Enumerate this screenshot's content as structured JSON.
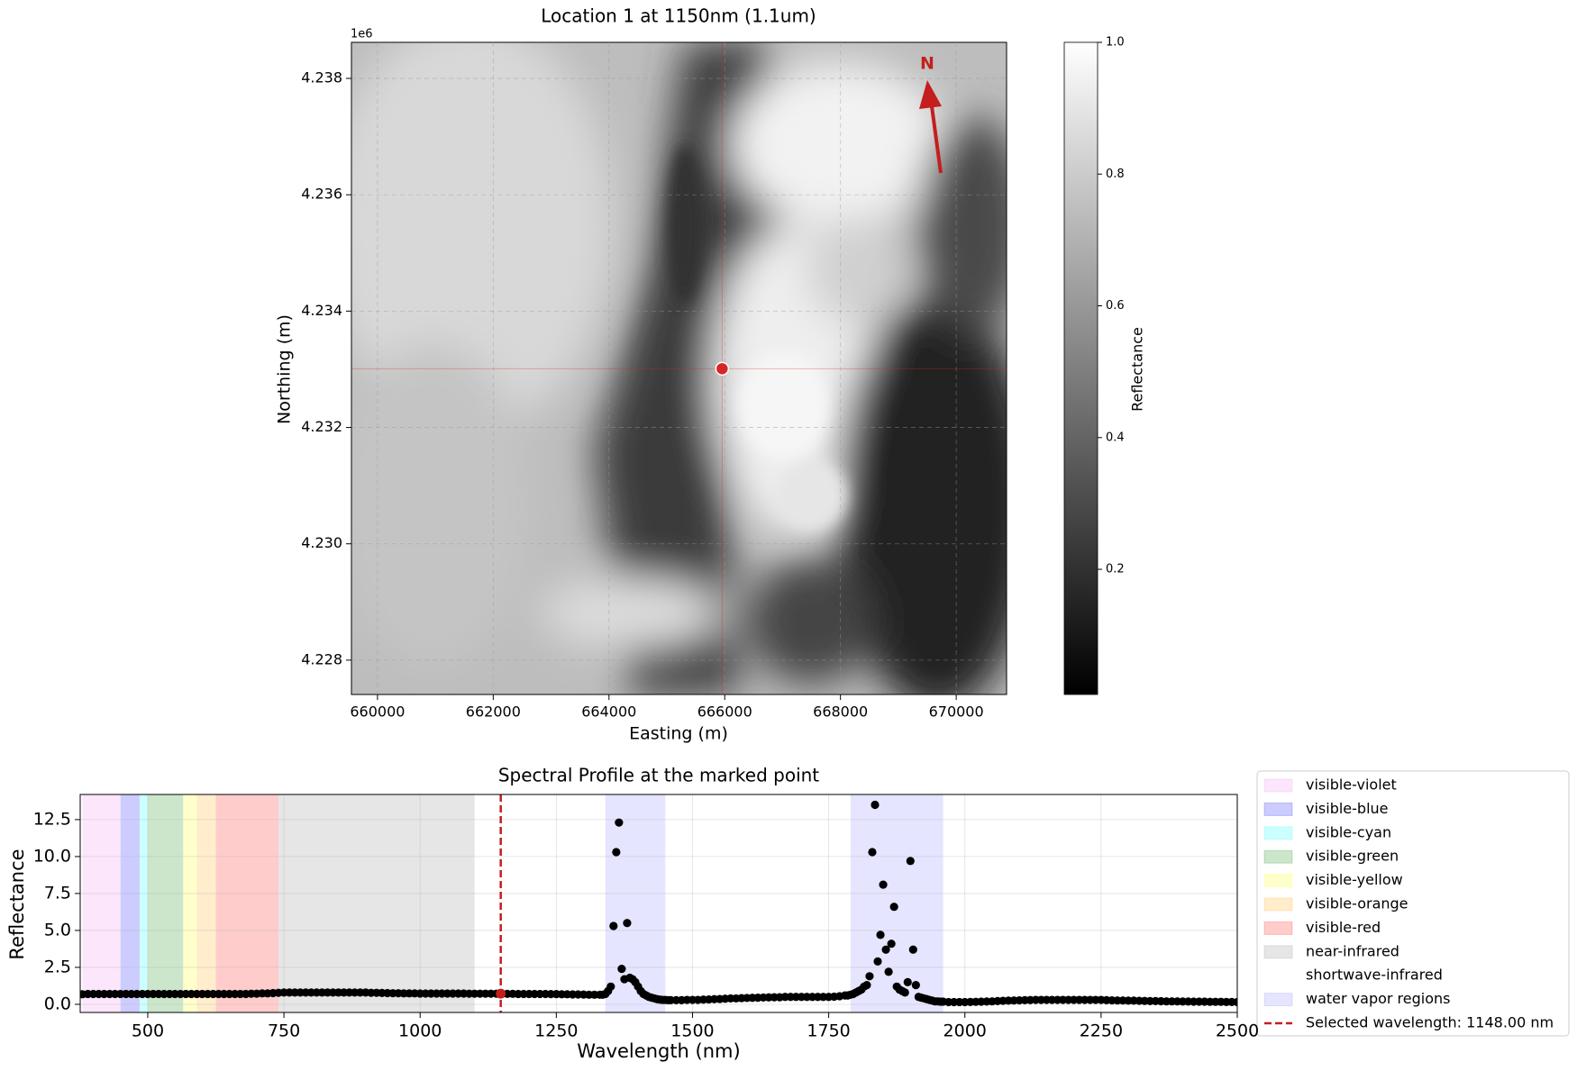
{
  "chart_data": [
    {
      "type": "image",
      "title": "Location 1 at 1150nm (1.1um)",
      "xlabel": "Easting (m)",
      "ylabel": "Northing (m)",
      "xlim": [
        659550,
        670870
      ],
      "ylim": [
        4227410,
        4238620
      ],
      "xticks": [
        660000,
        662000,
        664000,
        666000,
        668000,
        670000
      ],
      "yticks": [
        {
          "value": 4228000,
          "label": "4.228"
        },
        {
          "value": 4230000,
          "label": "4.230"
        },
        {
          "value": 4232000,
          "label": "4.232"
        },
        {
          "value": 4234000,
          "label": "4.234"
        },
        {
          "value": 4236000,
          "label": "4.236"
        },
        {
          "value": 4238000,
          "label": "4.238"
        }
      ],
      "offset_label": "1e6",
      "grid": true,
      "marker": {
        "x": 665955,
        "y": 4233010,
        "color": "#d62728"
      },
      "north_label": "N",
      "colorbar": {
        "label": "Reflectance",
        "clim": [
          0.01,
          1.0
        ],
        "ticks": [
          0.2,
          0.4,
          0.6,
          0.8,
          {
            "value": 1,
            "label": "1.0"
          }
        ]
      }
    },
    {
      "type": "scatter",
      "title": "Spectral Profile at the marked point",
      "xlabel": "Wavelength (nm)",
      "ylabel": "Reflectance",
      "xlim": [
        376,
        2500
      ],
      "ylim": [
        -0.55,
        14.2
      ],
      "xticks": [
        500,
        750,
        1000,
        1250,
        1500,
        1750,
        2000,
        2250,
        2500
      ],
      "yticks": [
        {
          "value": 0,
          "label": "0.0"
        },
        2.5,
        {
          "value": 5,
          "label": "5.0"
        },
        7.5,
        {
          "value": 10,
          "label": "10.0"
        },
        12.5
      ],
      "grid": true,
      "color": "#000000",
      "bands": [
        {
          "name": "visible-violet",
          "color": "#ee82ee",
          "alpha": 0.2,
          "ranges": [
            [
              380,
              450
            ]
          ]
        },
        {
          "name": "visible-blue",
          "color": "#0000ff",
          "alpha": 0.2,
          "ranges": [
            [
              450,
              485
            ]
          ]
        },
        {
          "name": "visible-cyan",
          "color": "#00ffff",
          "alpha": 0.2,
          "ranges": [
            [
              485,
              500
            ]
          ]
        },
        {
          "name": "visible-green",
          "color": "#008000",
          "alpha": 0.2,
          "ranges": [
            [
              500,
              565
            ]
          ]
        },
        {
          "name": "visible-yellow",
          "color": "#ffff00",
          "alpha": 0.2,
          "ranges": [
            [
              565,
              590
            ]
          ]
        },
        {
          "name": "visible-orange",
          "color": "#ffa500",
          "alpha": 0.2,
          "ranges": [
            [
              590,
              625
            ]
          ]
        },
        {
          "name": "visible-red",
          "color": "#ff0000",
          "alpha": 0.2,
          "ranges": [
            [
              625,
              740
            ]
          ]
        },
        {
          "name": "near-infrared",
          "color": "#808080",
          "alpha": 0.2,
          "ranges": [
            [
              740,
              1100
            ]
          ]
        },
        {
          "name": "shortwave-infrared",
          "color": "#ffffff",
          "alpha": 0.2,
          "ranges": [
            [
              1100,
              2500
            ]
          ]
        },
        {
          "name": "water vapor regions",
          "color": "#0000ff",
          "alpha": 0.1,
          "ranges": [
            [
              1340,
              1450
            ],
            [
              1790,
              1960
            ]
          ]
        }
      ],
      "selected": {
        "name": "Selected wavelength: 1148.00 nm",
        "x": 1148,
        "y": 0.72,
        "color": "#c41e1e"
      },
      "x": [
        380,
        390,
        400,
        410,
        420,
        430,
        440,
        450,
        460,
        470,
        480,
        490,
        500,
        510,
        520,
        530,
        540,
        550,
        560,
        570,
        580,
        590,
        600,
        610,
        620,
        630,
        640,
        650,
        660,
        670,
        680,
        690,
        700,
        710,
        720,
        730,
        740,
        750,
        760,
        770,
        780,
        790,
        800,
        810,
        820,
        830,
        840,
        850,
        860,
        870,
        880,
        890,
        900,
        910,
        920,
        930,
        940,
        950,
        960,
        970,
        980,
        990,
        1000,
        1010,
        1020,
        1030,
        1040,
        1050,
        1060,
        1070,
        1080,
        1090,
        1100,
        1110,
        1120,
        1130,
        1140,
        1150,
        1160,
        1170,
        1180,
        1190,
        1200,
        1210,
        1220,
        1230,
        1240,
        1250,
        1260,
        1270,
        1280,
        1290,
        1300,
        1310,
        1320,
        1330,
        1335,
        1340,
        1345,
        1350,
        1355,
        1360,
        1365,
        1370,
        1375,
        1380,
        1385,
        1390,
        1395,
        1400,
        1405,
        1410,
        1415,
        1420,
        1425,
        1430,
        1435,
        1440,
        1445,
        1450,
        1455,
        1460,
        1470,
        1480,
        1490,
        1500,
        1510,
        1520,
        1530,
        1540,
        1550,
        1560,
        1570,
        1580,
        1590,
        1600,
        1610,
        1620,
        1630,
        1640,
        1650,
        1660,
        1670,
        1680,
        1690,
        1700,
        1710,
        1720,
        1730,
        1740,
        1750,
        1760,
        1770,
        1780,
        1785,
        1790,
        1795,
        1800,
        1805,
        1810,
        1815,
        1820,
        1825,
        1830,
        1835,
        1840,
        1845,
        1850,
        1855,
        1860,
        1865,
        1870,
        1875,
        1880,
        1885,
        1890,
        1895,
        1900,
        1905,
        1910,
        1915,
        1920,
        1925,
        1930,
        1935,
        1940,
        1945,
        1950,
        1955,
        1960,
        1970,
        1980,
        1990,
        2000,
        2010,
        2020,
        2030,
        2040,
        2050,
        2060,
        2070,
        2080,
        2090,
        2100,
        2110,
        2120,
        2130,
        2140,
        2150,
        2160,
        2170,
        2180,
        2190,
        2200,
        2210,
        2220,
        2230,
        2240,
        2250,
        2260,
        2270,
        2280,
        2290,
        2300,
        2310,
        2320,
        2330,
        2340,
        2350,
        2360,
        2370,
        2380,
        2390,
        2400,
        2410,
        2420,
        2430,
        2440,
        2450,
        2460,
        2470,
        2480,
        2490,
        2500
      ],
      "values": [
        0.68,
        0.7,
        0.7,
        0.7,
        0.7,
        0.7,
        0.7,
        0.7,
        0.7,
        0.7,
        0.7,
        0.7,
        0.7,
        0.7,
        0.7,
        0.7,
        0.7,
        0.7,
        0.7,
        0.7,
        0.7,
        0.7,
        0.7,
        0.7,
        0.7,
        0.7,
        0.7,
        0.7,
        0.7,
        0.7,
        0.7,
        0.72,
        0.72,
        0.74,
        0.74,
        0.76,
        0.78,
        0.8,
        0.8,
        0.8,
        0.8,
        0.8,
        0.8,
        0.8,
        0.8,
        0.8,
        0.8,
        0.8,
        0.8,
        0.8,
        0.8,
        0.8,
        0.8,
        0.78,
        0.78,
        0.77,
        0.76,
        0.75,
        0.75,
        0.74,
        0.74,
        0.74,
        0.73,
        0.73,
        0.73,
        0.73,
        0.73,
        0.73,
        0.73,
        0.73,
        0.73,
        0.72,
        0.72,
        0.72,
        0.72,
        0.72,
        0.72,
        0.71,
        0.71,
        0.71,
        0.7,
        0.7,
        0.7,
        0.7,
        0.7,
        0.7,
        0.69,
        0.69,
        0.68,
        0.68,
        0.67,
        0.67,
        0.66,
        0.65,
        0.65,
        0.65,
        0.65,
        0.7,
        0.9,
        1.2,
        5.3,
        10.3,
        12.3,
        2.4,
        1.7,
        5.5,
        1.8,
        1.7,
        1.5,
        1.2,
        0.9,
        0.7,
        0.6,
        0.5,
        0.45,
        0.4,
        0.35,
        0.32,
        0.3,
        0.3,
        0.28,
        0.28,
        0.28,
        0.28,
        0.3,
        0.3,
        0.3,
        0.32,
        0.33,
        0.35,
        0.36,
        0.38,
        0.4,
        0.4,
        0.42,
        0.43,
        0.44,
        0.45,
        0.46,
        0.47,
        0.48,
        0.48,
        0.5,
        0.5,
        0.5,
        0.5,
        0.5,
        0.5,
        0.5,
        0.5,
        0.5,
        0.52,
        0.55,
        0.6,
        0.6,
        0.65,
        0.7,
        0.8,
        0.9,
        1.0,
        1.2,
        1.3,
        1.9,
        10.3,
        13.5,
        2.9,
        4.7,
        8.1,
        3.7,
        2.2,
        4.1,
        6.6,
        1.2,
        1.0,
        0.9,
        0.8,
        1.5,
        9.7,
        3.7,
        1.3,
        0.5,
        0.45,
        0.4,
        0.35,
        0.3,
        0.25,
        0.2,
        0.2,
        0.18,
        0.18,
        0.15,
        0.15,
        0.15,
        0.15,
        0.16,
        0.17,
        0.18,
        0.19,
        0.2,
        0.22,
        0.24,
        0.25,
        0.26,
        0.27,
        0.28,
        0.29,
        0.3,
        0.3,
        0.3,
        0.3,
        0.3,
        0.3,
        0.3,
        0.3,
        0.3,
        0.3,
        0.3,
        0.3,
        0.3,
        0.28,
        0.27,
        0.26,
        0.26,
        0.25,
        0.25,
        0.24,
        0.23,
        0.22,
        0.22,
        0.21,
        0.2,
        0.2,
        0.2,
        0.19,
        0.19,
        0.18,
        0.18,
        0.18,
        0.17,
        0.17,
        0.17,
        0.16,
        0.16,
        0.15
      ]
    }
  ]
}
